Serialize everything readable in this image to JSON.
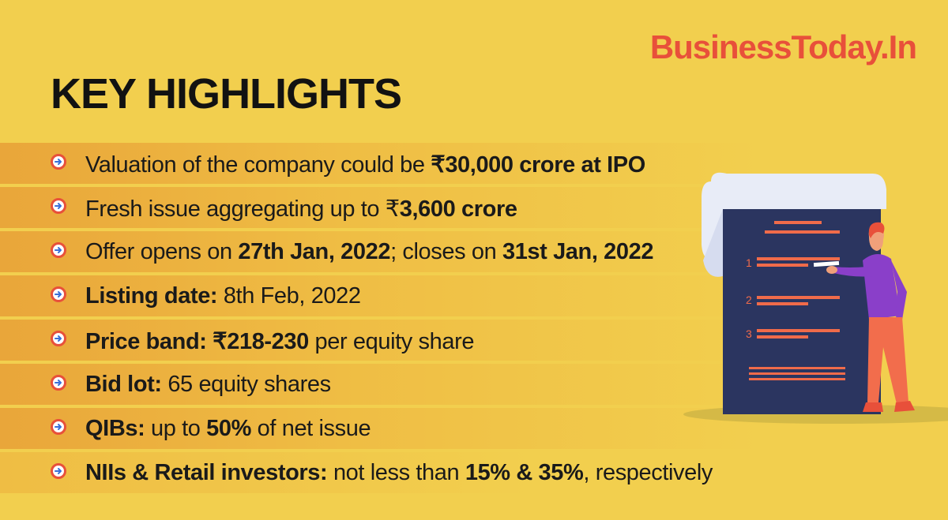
{
  "brand": "BusinessToday.In",
  "title": "KEY HIGHLIGHTS",
  "highlights": [
    {
      "a": "Valuation of the company could be ",
      "b": "₹30,000 crore at IPO",
      "c": ""
    },
    {
      "a": "Fresh issue aggregating up to ₹",
      "b": "3,600 crore",
      "c": ""
    },
    {
      "a": "Offer opens on ",
      "b": "27th Jan, 2022",
      "c": "; closes on ",
      "d": "31st Jan, 2022"
    },
    {
      "b": "Listing date:",
      "c": " 8th Feb, 2022"
    },
    {
      "b": "Price band: ₹218-230",
      "c": " per equity share"
    },
    {
      "b": "Bid lot:",
      "c": " 65 equity shares"
    },
    {
      "b": "QIBs:",
      "c": " up to ",
      "d": "50%",
      "e": " of net issue"
    },
    {
      "b": "NIIs & Retail investors:",
      "c": " not less than ",
      "d": "15% & 35%",
      "e": ", respectively"
    }
  ],
  "illustration": {
    "step_labels": [
      "1",
      "2",
      "3"
    ],
    "colors": {
      "board": "#2b3560",
      "lines": "#f06b4a",
      "paper": "#e8ecf7",
      "person_shirt": "#8a3fc9",
      "person_pants": "#f26d4c"
    }
  }
}
